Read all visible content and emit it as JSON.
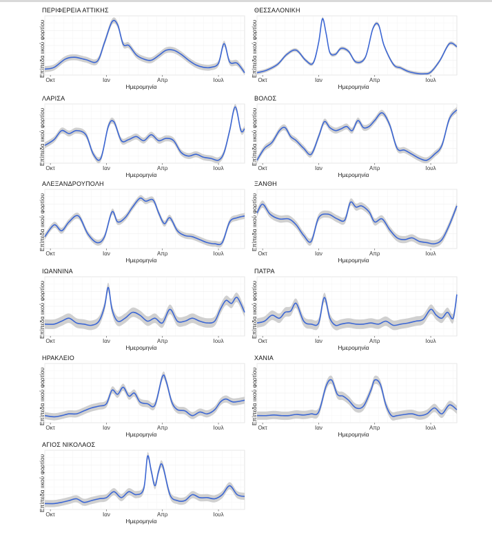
{
  "common": {
    "ylabel": "Επίπεδα ιικού φορτίου",
    "xlabel": "Ημερομηνία",
    "xticks": [
      "Οκτ",
      "Ιαν",
      "Απρ",
      "Ιουλ"
    ],
    "xtick_positions": [
      0,
      3,
      6,
      9
    ],
    "line_color": "#3b66d4",
    "band_color": "#c8c8c8"
  },
  "chart_data": [
    {
      "type": "line",
      "title": "ΠΕΡΙΦΕΡΕΙΑ ΑΤΤΙΚΗΣ",
      "x": [
        -0.3,
        0.2,
        0.8,
        1.3,
        1.9,
        2.5,
        2.9,
        3.3,
        3.6,
        3.9,
        4.2,
        4.6,
        5.0,
        5.4,
        5.8,
        6.2,
        6.6,
        7.0,
        7.4,
        7.8,
        8.2,
        8.6,
        9.0,
        9.3,
        9.6,
        10.0,
        10.4
      ],
      "y": [
        0.1,
        0.13,
        0.27,
        0.3,
        0.26,
        0.23,
        0.55,
        0.9,
        0.85,
        0.52,
        0.5,
        0.34,
        0.27,
        0.25,
        0.33,
        0.42,
        0.42,
        0.35,
        0.25,
        0.17,
        0.13,
        0.13,
        0.2,
        0.53,
        0.22,
        0.2,
        0.04
      ],
      "band": 0.05
    },
    {
      "type": "line",
      "title": "ΘΕΣΣΑΛΟΝΙΚΗ",
      "x": [
        -0.3,
        0.2,
        0.8,
        1.3,
        1.8,
        2.3,
        2.7,
        3.0,
        3.2,
        3.4,
        3.6,
        3.9,
        4.2,
        4.6,
        5.0,
        5.5,
        5.9,
        6.2,
        6.5,
        7.0,
        7.4,
        7.8,
        8.2,
        8.6,
        9.0,
        9.5,
        10.0,
        10.4
      ],
      "y": [
        0.04,
        0.08,
        0.18,
        0.35,
        0.42,
        0.25,
        0.2,
        0.55,
        0.95,
        0.7,
        0.38,
        0.35,
        0.45,
        0.4,
        0.22,
        0.3,
        0.78,
        0.85,
        0.5,
        0.18,
        0.12,
        0.06,
        0.03,
        0.02,
        0.05,
        0.25,
        0.53,
        0.48
      ],
      "band": 0.03
    },
    {
      "type": "line",
      "title": "ΛΑΡΙΣΑ",
      "x": [
        -0.3,
        0.2,
        0.6,
        1.0,
        1.4,
        1.9,
        2.3,
        2.7,
        3.1,
        3.4,
        3.8,
        4.2,
        4.6,
        5.0,
        5.4,
        5.8,
        6.2,
        6.6,
        7.0,
        7.4,
        7.8,
        8.2,
        8.6,
        9.0,
        9.3,
        9.6,
        9.9,
        10.2,
        10.4
      ],
      "y": [
        0.3,
        0.4,
        0.55,
        0.5,
        0.55,
        0.48,
        0.15,
        0.08,
        0.62,
        0.7,
        0.38,
        0.4,
        0.45,
        0.38,
        0.48,
        0.38,
        0.42,
        0.38,
        0.18,
        0.12,
        0.15,
        0.1,
        0.08,
        0.05,
        0.18,
        0.55,
        0.95,
        0.55,
        0.58
      ],
      "band": 0.05
    },
    {
      "type": "line",
      "title": "ΒΟΛΟΣ",
      "x": [
        -0.3,
        0.1,
        0.5,
        0.9,
        1.2,
        1.5,
        1.8,
        2.2,
        2.6,
        3.0,
        3.3,
        3.6,
        3.9,
        4.2,
        4.5,
        4.8,
        5.1,
        5.4,
        5.7,
        6.0,
        6.4,
        6.8,
        7.2,
        7.6,
        8.0,
        8.4,
        8.8,
        9.2,
        9.6,
        10.0,
        10.4
      ],
      "y": [
        0.05,
        0.25,
        0.35,
        0.55,
        0.6,
        0.45,
        0.38,
        0.25,
        0.15,
        0.45,
        0.7,
        0.6,
        0.55,
        0.58,
        0.62,
        0.55,
        0.72,
        0.6,
        0.62,
        0.72,
        0.85,
        0.65,
        0.25,
        0.22,
        0.15,
        0.08,
        0.05,
        0.15,
        0.3,
        0.75,
        0.9
      ],
      "band": 0.05
    },
    {
      "type": "line",
      "title": "ΑΛΕΞΑΝΔΡΟΥΠΟΛΗ",
      "x": [
        -0.3,
        0.2,
        0.6,
        1.0,
        1.5,
        2.0,
        2.5,
        2.9,
        3.3,
        3.6,
        4.0,
        4.4,
        4.8,
        5.1,
        5.5,
        5.8,
        6.1,
        6.4,
        6.8,
        7.2,
        7.6,
        8.0,
        8.4,
        8.8,
        9.2,
        9.6,
        10.0,
        10.4
      ],
      "y": [
        0.2,
        0.4,
        0.3,
        0.45,
        0.55,
        0.25,
        0.1,
        0.2,
        0.62,
        0.45,
        0.52,
        0.7,
        0.85,
        0.8,
        0.82,
        0.6,
        0.42,
        0.52,
        0.3,
        0.22,
        0.2,
        0.15,
        0.1,
        0.08,
        0.1,
        0.45,
        0.52,
        0.55
      ],
      "band": 0.05
    },
    {
      "type": "line",
      "title": "ΞΑΝΘΗ",
      "x": [
        -0.3,
        0.0,
        0.4,
        0.9,
        1.4,
        1.8,
        2.2,
        2.6,
        3.0,
        3.5,
        4.0,
        4.4,
        4.7,
        5.0,
        5.3,
        5.7,
        6.0,
        6.4,
        6.8,
        7.2,
        7.6,
        8.0,
        8.4,
        8.8,
        9.2,
        9.6,
        10.0,
        10.4
      ],
      "y": [
        0.6,
        0.75,
        0.58,
        0.5,
        0.5,
        0.4,
        0.22,
        0.12,
        0.52,
        0.58,
        0.5,
        0.48,
        0.78,
        0.7,
        0.72,
        0.62,
        0.45,
        0.5,
        0.32,
        0.18,
        0.15,
        0.18,
        0.12,
        0.1,
        0.08,
        0.15,
        0.4,
        0.72
      ],
      "band": 0.06
    },
    {
      "type": "line",
      "title": "ΙΩΑΝΝΙΝΑ",
      "x": [
        -0.3,
        0.2,
        0.6,
        1.0,
        1.4,
        1.8,
        2.2,
        2.6,
        2.9,
        3.1,
        3.3,
        3.6,
        4.0,
        4.4,
        4.8,
        5.2,
        5.6,
        6.0,
        6.4,
        6.8,
        7.2,
        7.6,
        8.0,
        8.4,
        8.8,
        9.1,
        9.4,
        9.7,
        10.0,
        10.4
      ],
      "y": [
        0.2,
        0.2,
        0.25,
        0.3,
        0.22,
        0.2,
        0.18,
        0.25,
        0.5,
        0.82,
        0.45,
        0.25,
        0.3,
        0.4,
        0.35,
        0.25,
        0.3,
        0.22,
        0.45,
        0.25,
        0.25,
        0.3,
        0.25,
        0.22,
        0.25,
        0.45,
        0.6,
        0.55,
        0.65,
        0.4
      ],
      "band": 0.08
    },
    {
      "type": "line",
      "title": "ΠΑΤΡΑ",
      "x": [
        -0.3,
        0.1,
        0.5,
        0.9,
        1.2,
        1.5,
        1.8,
        2.2,
        2.6,
        3.0,
        3.3,
        3.6,
        3.9,
        4.2,
        4.6,
        5.0,
        5.4,
        5.8,
        6.2,
        6.6,
        7.0,
        7.4,
        7.8,
        8.2,
        8.6,
        9.0,
        9.3,
        9.6,
        9.9,
        10.2,
        10.4
      ],
      "y": [
        0.22,
        0.25,
        0.35,
        0.3,
        0.4,
        0.42,
        0.55,
        0.25,
        0.2,
        0.22,
        0.65,
        0.3,
        0.18,
        0.2,
        0.22,
        0.2,
        0.2,
        0.22,
        0.2,
        0.25,
        0.18,
        0.2,
        0.22,
        0.25,
        0.28,
        0.45,
        0.35,
        0.3,
        0.4,
        0.3,
        0.7
      ],
      "band": 0.08
    },
    {
      "type": "line",
      "title": "ΗΡΑΚΛΕΙΟ",
      "x": [
        -0.3,
        0.2,
        0.6,
        1.0,
        1.4,
        1.8,
        2.2,
        2.6,
        3.0,
        3.3,
        3.6,
        3.9,
        4.2,
        4.5,
        4.8,
        5.2,
        5.6,
        6.0,
        6.2,
        6.5,
        6.8,
        7.2,
        7.6,
        8.0,
        8.4,
        8.8,
        9.1,
        9.4,
        9.8,
        10.4
      ],
      "y": [
        0.12,
        0.1,
        0.12,
        0.15,
        0.15,
        0.2,
        0.25,
        0.28,
        0.32,
        0.55,
        0.48,
        0.6,
        0.45,
        0.5,
        0.35,
        0.32,
        0.3,
        0.78,
        0.7,
        0.35,
        0.22,
        0.2,
        0.12,
        0.18,
        0.15,
        0.22,
        0.35,
        0.4,
        0.35,
        0.38
      ],
      "band": 0.06
    },
    {
      "type": "line",
      "title": "ΧΑΝΙΑ",
      "x": [
        -0.3,
        0.2,
        0.6,
        1.0,
        1.4,
        1.8,
        2.2,
        2.6,
        3.0,
        3.4,
        3.7,
        4.0,
        4.3,
        4.6,
        5.0,
        5.4,
        5.8,
        6.0,
        6.3,
        6.6,
        6.9,
        7.2,
        7.6,
        8.0,
        8.4,
        8.8,
        9.2,
        9.6,
        10.0,
        10.4
      ],
      "y": [
        0.12,
        0.12,
        0.13,
        0.12,
        0.12,
        0.14,
        0.13,
        0.15,
        0.18,
        0.62,
        0.72,
        0.48,
        0.45,
        0.38,
        0.25,
        0.28,
        0.55,
        0.72,
        0.65,
        0.3,
        0.12,
        0.12,
        0.14,
        0.15,
        0.12,
        0.15,
        0.25,
        0.15,
        0.3,
        0.22
      ],
      "band": 0.07
    },
    {
      "type": "line",
      "title": "ΑΓΙΟΣ ΝΙΚΟΛΑΟΣ",
      "x": [
        -0.3,
        0.2,
        0.6,
        1.0,
        1.4,
        1.8,
        2.2,
        2.6,
        3.0,
        3.4,
        3.8,
        4.2,
        4.6,
        5.0,
        5.2,
        5.4,
        5.6,
        5.8,
        6.0,
        6.4,
        6.8,
        7.2,
        7.6,
        8.0,
        8.4,
        8.8,
        9.2,
        9.6,
        10.0,
        10.4
      ],
      "y": [
        0.1,
        0.1,
        0.12,
        0.15,
        0.18,
        0.12,
        0.15,
        0.18,
        0.2,
        0.3,
        0.2,
        0.3,
        0.25,
        0.35,
        0.9,
        0.65,
        0.4,
        0.65,
        0.75,
        0.25,
        0.15,
        0.15,
        0.25,
        0.2,
        0.2,
        0.18,
        0.25,
        0.4,
        0.25,
        0.22
      ],
      "band": 0.06
    }
  ]
}
